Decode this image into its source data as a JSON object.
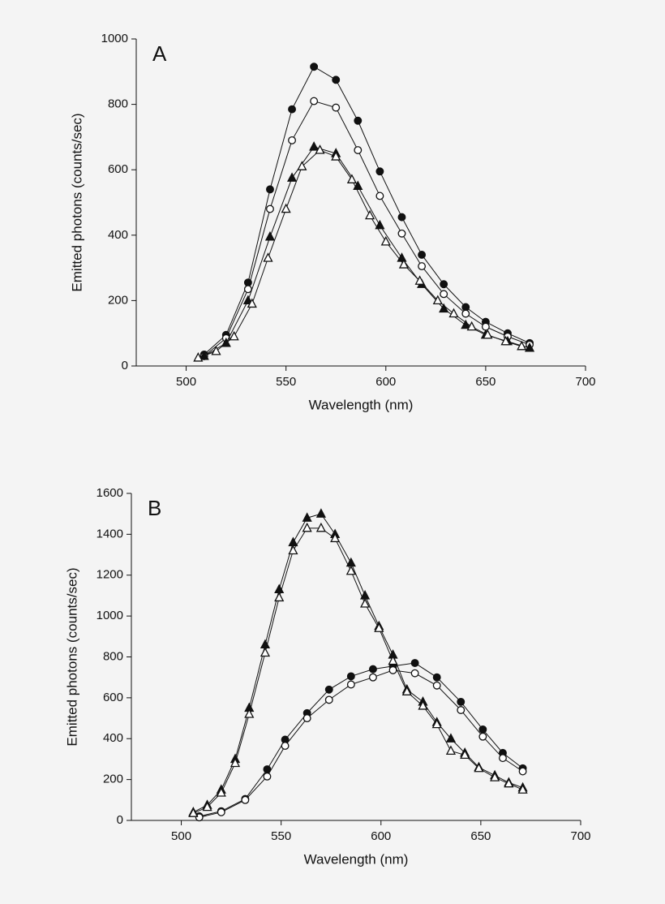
{
  "chart_data": [
    {
      "type": "line",
      "panel_label": "A",
      "xlabel": "Wavelength (nm)",
      "ylabel": "Emitted photons (counts/sec)",
      "xlim": [
        475,
        700
      ],
      "xticks": [
        500,
        550,
        600,
        650,
        700
      ],
      "ylim": [
        0,
        1000
      ],
      "yticks": [
        0,
        200,
        400,
        600,
        800,
        1000
      ],
      "series": [
        {
          "color": "#111111",
          "marker": "circle",
          "filled": true,
          "x": [
            509,
            520,
            531,
            542,
            553,
            564,
            575,
            586,
            597,
            608,
            618,
            629,
            640,
            650,
            661,
            672
          ],
          "values": [
            35,
            95,
            255,
            540,
            785,
            915,
            875,
            750,
            595,
            455,
            340,
            250,
            180,
            135,
            100,
            70
          ]
        },
        {
          "color": "#111111",
          "marker": "circle",
          "filled": false,
          "x": [
            509,
            520,
            531,
            542,
            553,
            564,
            575,
            586,
            597,
            608,
            618,
            629,
            640,
            650,
            661,
            672
          ],
          "values": [
            30,
            85,
            235,
            480,
            690,
            810,
            790,
            660,
            520,
            405,
            305,
            220,
            160,
            120,
            90,
            65
          ]
        },
        {
          "color": "#111111",
          "marker": "triangle",
          "filled": true,
          "x": [
            509,
            520,
            531,
            542,
            553,
            564,
            575,
            586,
            597,
            608,
            618,
            629,
            640,
            650,
            661,
            672
          ],
          "values": [
            30,
            70,
            200,
            395,
            575,
            670,
            650,
            550,
            430,
            330,
            250,
            175,
            125,
            95,
            75,
            55
          ]
        },
        {
          "color": "#111111",
          "marker": "triangle",
          "filled": false,
          "x": [
            506,
            515,
            524,
            533,
            541,
            550,
            558,
            567,
            575,
            583,
            592,
            600,
            609,
            617,
            626,
            634,
            643,
            651,
            660,
            668
          ],
          "values": [
            25,
            45,
            90,
            190,
            330,
            480,
            610,
            660,
            640,
            570,
            460,
            380,
            310,
            260,
            200,
            160,
            120,
            95,
            75,
            60
          ]
        }
      ]
    },
    {
      "type": "line",
      "panel_label": "B",
      "xlabel": "Wavelength (nm)",
      "ylabel": "Emitted photons (counts/sec)",
      "xlim": [
        475,
        700
      ],
      "xticks": [
        500,
        550,
        600,
        650,
        700
      ],
      "ylim": [
        0,
        1600
      ],
      "yticks": [
        0,
        200,
        400,
        600,
        800,
        1000,
        1200,
        1400,
        1600
      ],
      "series": [
        {
          "color": "#111111",
          "marker": "circle",
          "filled": true,
          "x": [
            509,
            520,
            532,
            543,
            552,
            563,
            574,
            585,
            596,
            606,
            617,
            628,
            640,
            651,
            661,
            671
          ],
          "values": [
            20,
            45,
            105,
            250,
            395,
            525,
            640,
            705,
            740,
            755,
            770,
            700,
            580,
            445,
            330,
            255
          ]
        },
        {
          "color": "#111111",
          "marker": "circle",
          "filled": false,
          "x": [
            509,
            520,
            532,
            543,
            552,
            563,
            574,
            585,
            596,
            606,
            617,
            628,
            640,
            651,
            661,
            671
          ],
          "values": [
            15,
            40,
            100,
            215,
            365,
            500,
            590,
            665,
            700,
            735,
            720,
            660,
            540,
            410,
            305,
            240
          ]
        },
        {
          "color": "#111111",
          "marker": "triangle",
          "filled": true,
          "x": [
            506,
            513,
            520,
            527,
            534,
            542,
            549,
            556,
            563,
            570,
            577,
            585,
            592,
            599,
            606,
            613,
            621,
            628,
            635,
            642,
            649,
            657,
            664,
            671
          ],
          "values": [
            40,
            75,
            150,
            300,
            550,
            860,
            1130,
            1360,
            1480,
            1500,
            1400,
            1260,
            1100,
            950,
            810,
            640,
            580,
            480,
            400,
            330,
            260,
            220,
            185,
            160
          ]
        },
        {
          "color": "#111111",
          "marker": "triangle",
          "filled": false,
          "x": [
            506,
            513,
            520,
            527,
            534,
            542,
            549,
            556,
            563,
            570,
            577,
            585,
            592,
            599,
            606,
            613,
            621,
            628,
            635,
            642,
            649,
            657,
            664,
            671
          ],
          "values": [
            35,
            65,
            135,
            280,
            520,
            820,
            1090,
            1320,
            1430,
            1430,
            1380,
            1220,
            1060,
            940,
            780,
            630,
            560,
            470,
            340,
            320,
            255,
            210,
            180,
            150
          ]
        }
      ]
    }
  ]
}
